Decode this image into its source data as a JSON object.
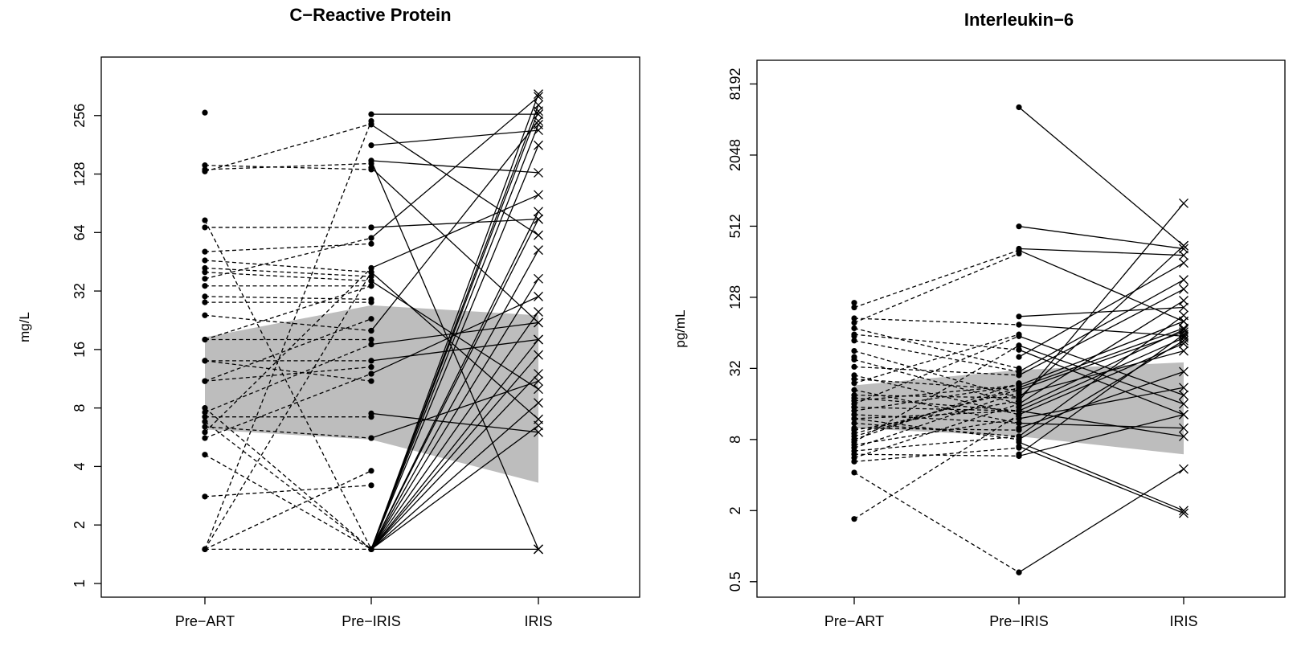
{
  "chart_data": [
    {
      "type": "line",
      "title": "C−Reactive Protein",
      "ylabel": "mg/L",
      "xlabel": "",
      "y_scale": "log2",
      "ylim": [
        0.85,
        512
      ],
      "y_ticks": [
        1,
        2,
        4,
        8,
        16,
        32,
        64,
        128,
        256
      ],
      "categories": [
        "Pre−ART",
        "Pre−IRIS",
        "IRIS"
      ],
      "grid": false,
      "legend": "none",
      "shaded_band": {
        "color": "#bdbdbd",
        "lower": [
          6.2,
          5.5,
          3.3
        ],
        "upper": [
          18.5,
          27,
          24
        ]
      },
      "pre_art_only": [
        265
      ],
      "dashed_pairs": [
        [
          142,
          135
        ],
        [
          135,
          145
        ],
        [
          132,
          232
        ],
        [
          74,
          1.5
        ],
        [
          68,
          68
        ],
        [
          51,
          56
        ],
        [
          46,
          40
        ],
        [
          42,
          38
        ],
        [
          40,
          36
        ],
        [
          37,
          60
        ],
        [
          34,
          34
        ],
        [
          30,
          29
        ],
        [
          28,
          28
        ],
        [
          24,
          20
        ],
        [
          18,
          18
        ],
        [
          18,
          34
        ],
        [
          14,
          14
        ],
        [
          14,
          11
        ],
        [
          11,
          23
        ],
        [
          11,
          13
        ],
        [
          8,
          1.5
        ],
        [
          7.6,
          17
        ],
        [
          7.2,
          7.2
        ],
        [
          6.8,
          1.5
        ],
        [
          6.4,
          5.6
        ],
        [
          6.0,
          42
        ],
        [
          5.6,
          12
        ],
        [
          4.6,
          1.5
        ],
        [
          2.8,
          3.2
        ],
        [
          1.5,
          1.5
        ],
        [
          1.5,
          3.8
        ],
        [
          1.5,
          240
        ],
        [
          1.5,
          40
        ]
      ],
      "solid_pairs": [
        [
          260,
          260
        ],
        [
          230,
          62
        ],
        [
          180,
          215
        ],
        [
          150,
          130
        ],
        [
          138,
          22
        ],
        [
          68,
          75
        ],
        [
          60,
          320
        ],
        [
          42,
          100
        ],
        [
          36,
          10
        ],
        [
          20,
          240
        ],
        [
          17,
          22
        ],
        [
          14,
          18
        ],
        [
          12,
          30
        ],
        [
          7.5,
          6
        ],
        [
          5.6,
          11
        ],
        [
          40,
          7
        ],
        [
          1.5,
          1.5
        ],
        [
          1.5,
          330
        ],
        [
          1.5,
          270
        ],
        [
          1.5,
          230
        ],
        [
          1.5,
          180
        ],
        [
          1.5,
          75
        ],
        [
          1.5,
          52
        ],
        [
          1.5,
          37
        ],
        [
          1.5,
          18
        ],
        [
          1.5,
          8.5
        ],
        [
          1.5,
          12
        ],
        [
          1.5,
          290
        ],
        [
          1.5,
          82
        ],
        [
          1.5,
          25
        ],
        [
          1.5,
          15
        ],
        [
          1.5,
          6.5
        ],
        [
          150,
          1.5
        ]
      ]
    },
    {
      "type": "line",
      "title": "Interleukin−6",
      "ylabel": "pg/mL",
      "xlabel": "",
      "y_scale": "log2",
      "ylim": [
        0.37,
        13000
      ],
      "y_ticks": [
        0.5,
        2,
        8,
        32,
        128,
        512,
        2048,
        8192
      ],
      "categories": [
        "Pre−ART",
        "Pre−IRIS",
        "IRIS"
      ],
      "grid": false,
      "legend": "none",
      "shaded_band": {
        "color": "#bdbdbd",
        "lower": [
          10,
          8.5,
          6
        ],
        "upper": [
          23,
          31,
          36
        ]
      },
      "pre_art_only": [
        115,
        60,
        40,
        15
      ],
      "dashed_pairs": [
        [
          105,
          320
        ],
        [
          85,
          75
        ],
        [
          78,
          300
        ],
        [
          70,
          32
        ],
        [
          62,
          46
        ],
        [
          55,
          30
        ],
        [
          45,
          18
        ],
        [
          38,
          16
        ],
        [
          33,
          28
        ],
        [
          28,
          13
        ],
        [
          26,
          21
        ],
        [
          24,
          62
        ],
        [
          21,
          11
        ],
        [
          19,
          18
        ],
        [
          18,
          14
        ],
        [
          17,
          23
        ],
        [
          16,
          60
        ],
        [
          15,
          14
        ],
        [
          14,
          23
        ],
        [
          13,
          11
        ],
        [
          12,
          8
        ],
        [
          11,
          8.5
        ],
        [
          10,
          9.6
        ],
        [
          9.6,
          17
        ],
        [
          9,
          21
        ],
        [
          8.5,
          22
        ],
        [
          8,
          24
        ],
        [
          7.6,
          50
        ],
        [
          7.2,
          12
        ],
        [
          6.8,
          20
        ],
        [
          6.4,
          8.5
        ],
        [
          6,
          5.8
        ],
        [
          5.6,
          16
        ],
        [
          5.2,
          6.8
        ],
        [
          4.2,
          0.6
        ],
        [
          1.7,
          13
        ],
        [
          12,
          14
        ]
      ],
      "solid_pairs": [
        [
          5200,
          350
        ],
        [
          510,
          330
        ],
        [
          330,
          290
        ],
        [
          320,
          80
        ],
        [
          88,
          105
        ],
        [
          75,
          60
        ],
        [
          60,
          19
        ],
        [
          50,
          16
        ],
        [
          46,
          13
        ],
        [
          40,
          250
        ],
        [
          30,
          180
        ],
        [
          28,
          150
        ],
        [
          23,
          80
        ],
        [
          22,
          70
        ],
        [
          21,
          65
        ],
        [
          19,
          45
        ],
        [
          18,
          350
        ],
        [
          17,
          800
        ],
        [
          16,
          120
        ],
        [
          15,
          68
        ],
        [
          14,
          58
        ],
        [
          13,
          52
        ],
        [
          12,
          22
        ],
        [
          11,
          10
        ],
        [
          10,
          30
        ],
        [
          8.5,
          90
        ],
        [
          8,
          55
        ],
        [
          7.6,
          2
        ],
        [
          7,
          1.9
        ],
        [
          6,
          62
        ],
        [
          5.8,
          13
        ],
        [
          0.6,
          4.5
        ],
        [
          14,
          8.5
        ]
      ]
    }
  ]
}
